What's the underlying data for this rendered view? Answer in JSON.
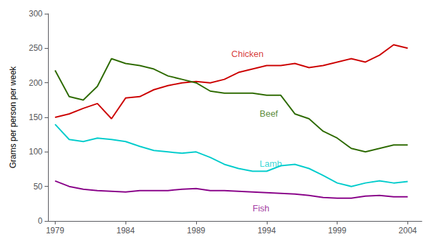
{
  "chart_data": {
    "type": "line",
    "ylabel": "Grams per person per week",
    "x": [
      1979,
      1980,
      1981,
      1982,
      1983,
      1984,
      1985,
      1986,
      1987,
      1988,
      1989,
      1990,
      1991,
      1992,
      1993,
      1994,
      1995,
      1996,
      1997,
      1998,
      1999,
      2000,
      2001,
      2002,
      2003,
      2004
    ],
    "series": [
      {
        "color": "#cc0000",
        "values": [
          150,
          155,
          163,
          170,
          148,
          178,
          180,
          190,
          196,
          200,
          202,
          200,
          205,
          215,
          220,
          225,
          225,
          228,
          222,
          225,
          230,
          235,
          230,
          240,
          255,
          250
        ]
      },
      {
        "color": "#2d6a00",
        "values": [
          218,
          180,
          175,
          195,
          235,
          228,
          225,
          220,
          210,
          205,
          200,
          188,
          185,
          185,
          185,
          182,
          182,
          155,
          148,
          130,
          120,
          105,
          100,
          105,
          110,
          110
        ]
      },
      {
        "color": "#00cccc",
        "values": [
          140,
          118,
          115,
          120,
          118,
          115,
          108,
          102,
          100,
          98,
          100,
          92,
          82,
          76,
          72,
          72,
          80,
          82,
          76,
          66,
          55,
          50,
          55,
          58,
          55,
          57
        ]
      },
      {
        "color": "#880088",
        "values": [
          58,
          50,
          46,
          44,
          43,
          42,
          44,
          44,
          44,
          46,
          47,
          44,
          44,
          43,
          42,
          41,
          40,
          39,
          37,
          34,
          33,
          33,
          36,
          37,
          35,
          35
        ]
      }
    ],
    "annotations": [
      {
        "text": "Chicken",
        "x": 1991.5,
        "y": 242,
        "color": "#cc0000"
      },
      {
        "text": "Beef",
        "x": 1993.5,
        "y": 155,
        "color": "#2d6a00"
      },
      {
        "text": "Lamb",
        "x": 1993.5,
        "y": 83,
        "color": "#00cccc"
      },
      {
        "text": "Fish",
        "x": 1993.0,
        "y": 18,
        "color": "#880088"
      }
    ],
    "xlim": [
      1978.5,
      2005
    ],
    "xticks": [
      1979,
      1984,
      1989,
      1994,
      1999,
      2004
    ],
    "ylim": [
      0,
      300
    ],
    "yticks": [
      0,
      50,
      100,
      150,
      200,
      250,
      300
    ],
    "grid": false
  }
}
